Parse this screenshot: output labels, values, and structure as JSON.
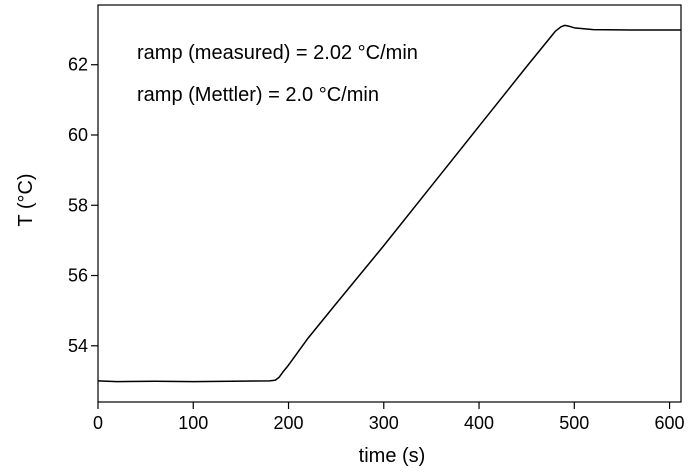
{
  "chart_data": {
    "type": "line",
    "title": "",
    "xlabel": "time (s)",
    "ylabel": "T (°C)",
    "xlim": [
      0,
      612
    ],
    "ylim": [
      52.4,
      63.7
    ],
    "xticks": [
      0,
      100,
      200,
      300,
      400,
      500,
      600
    ],
    "yticks": [
      54,
      56,
      58,
      60,
      62
    ],
    "grid": false,
    "legend": "none",
    "colors": {
      "line": "#000000",
      "axes": "#000000"
    },
    "annotations": [
      "ramp (measured) = 2.02 °C/min",
      "ramp (Mettler) = 2.0 °C/min"
    ],
    "series": [
      {
        "x": [
          0,
          20,
          60,
          100,
          140,
          180,
          186,
          190,
          194,
          200,
          220,
          250,
          300,
          350,
          400,
          450,
          480,
          486,
          490,
          494,
          500,
          520,
          560,
          612
        ],
        "y": [
          53.0,
          52.98,
          52.99,
          52.98,
          52.99,
          53.0,
          53.02,
          53.1,
          53.25,
          53.45,
          54.2,
          55.2,
          56.85,
          58.55,
          60.25,
          61.95,
          62.95,
          63.08,
          63.12,
          63.1,
          63.05,
          63.0,
          62.99,
          62.99
        ]
      }
    ]
  }
}
